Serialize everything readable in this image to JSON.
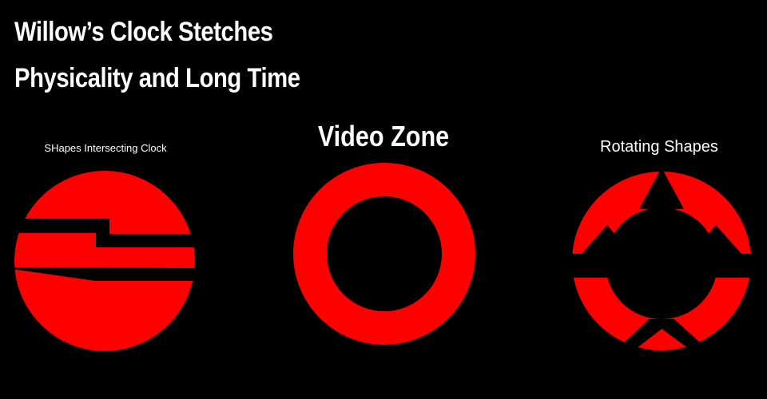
{
  "header": {
    "title_line1": "Willow’s Clock Stetches",
    "title_line2": "Physicality and Long Time"
  },
  "panels": {
    "left": {
      "caption": "SHapes Intersecting Clock"
    },
    "center": {
      "caption": "Video Zone"
    },
    "right": {
      "caption": "Rotating Shapes"
    }
  },
  "colors": {
    "background": "#000000",
    "shape": "#ff0000",
    "text": "#ffffff"
  }
}
